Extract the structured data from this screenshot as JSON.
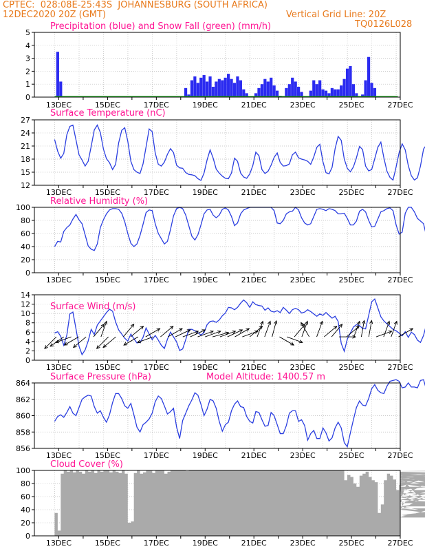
{
  "header": {
    "line1_left": "CPTEC:  028:08E-25:43S  JOHANNESBURG (SOUTH AFRICA)",
    "line2_left": "12DEC2020 20Z (GMT)",
    "line2_right": "Vertical Grid Line: 20Z",
    "code": "TQ0126L028"
  },
  "colors": {
    "line": "#2b3fe0",
    "bar": "#2b2bf0",
    "snow": "#22b022",
    "cloud": "#aaaaaa",
    "title": "#ff1493",
    "header": "#e87a1c"
  },
  "x_tick_labels": [
    "13DEC",
    "15DEC",
    "17DEC",
    "19DEC",
    "21DEC",
    "23DEC",
    "25DEC",
    "27DEC"
  ],
  "chart_data": [
    {
      "id": "precip",
      "type": "bar",
      "title": "Precipitation (blue) and Snow Fall (green) (mm/h)",
      "ylim": [
        0,
        5
      ],
      "yticks": [
        0,
        1,
        2,
        3,
        4,
        5
      ],
      "x_start_day": 12.83,
      "step_hours": 3,
      "snow_values": [
        0
      ],
      "values": [
        0,
        3.5,
        1.2,
        0,
        0,
        0,
        0,
        0,
        0,
        0,
        0,
        0,
        0,
        0,
        0,
        0,
        0,
        0,
        0,
        0,
        0,
        0,
        0,
        0,
        0,
        0,
        0,
        0,
        0,
        0,
        0,
        0,
        0,
        0,
        0,
        0,
        0,
        0,
        0,
        0,
        0,
        0,
        0,
        0.7,
        0.2,
        1.3,
        1.6,
        1.1,
        1.5,
        1.7,
        1.2,
        1.6,
        0.8,
        1.2,
        1.4,
        1.3,
        1.5,
        1.8,
        1.4,
        1.1,
        1.6,
        1.3,
        0.6,
        0.3,
        0,
        0,
        0.3,
        0.7,
        1.0,
        1.4,
        1.2,
        1.5,
        0.9,
        0.5,
        0.1,
        0,
        0.7,
        1.0,
        1.5,
        1.2,
        0.8,
        0.4,
        0,
        0,
        0.5,
        1.3,
        1.0,
        1.3,
        0.6,
        0.5,
        0.3,
        0.7,
        0.6,
        0.6,
        0.9,
        1.4,
        2.2,
        2.4,
        1.0,
        0.3,
        0,
        0.2,
        1.3,
        3.1,
        1.1,
        0.7,
        0,
        0,
        0,
        0,
        0,
        0,
        0,
        0,
        0,
        0,
        0,
        0,
        0,
        0,
        0,
        0,
        0,
        0,
        0,
        0,
        0,
        0,
        0,
        0,
        0,
        0,
        0,
        0,
        0,
        0,
        0,
        0,
        0,
        0,
        0,
        0,
        0,
        0,
        0,
        0,
        0,
        0,
        0,
        0.3,
        0,
        0,
        0,
        0,
        0.6,
        2.2,
        1.2,
        0
      ]
    },
    {
      "id": "temperature",
      "type": "line",
      "title": "Surface Temperature (nC)",
      "ylim": [
        12,
        27
      ],
      "yticks": [
        12,
        15,
        18,
        21,
        24,
        27
      ],
      "x_start_day": 12.83,
      "step_hours": 3,
      "values": [
        22.5,
        19.8,
        18.2,
        19.3,
        23.6,
        25.5,
        25.8,
        22.4,
        19.0,
        17.8,
        16.4,
        17.5,
        20.9,
        24.7,
        25.8,
        24.1,
        20.3,
        18.1,
        17.2,
        15.6,
        16.8,
        21.7,
        24.6,
        25.2,
        22.1,
        17.5,
        15.6,
        15.0,
        14.7,
        16.9,
        20.8,
        24.9,
        24.3,
        19.4,
        16.8,
        16.4,
        17.3,
        19.1,
        20.4,
        19.5,
        16.6,
        16.0,
        15.9,
        14.9,
        14.5,
        14.4,
        14.2,
        13.5,
        13.1,
        14.8,
        17.8,
        20.1,
        18.2,
        15.7,
        14.8,
        14.1,
        13.6,
        13.5,
        14.8,
        18.2,
        17.5,
        14.8,
        13.9,
        13.6,
        14.6,
        16.5,
        19.6,
        18.8,
        15.6,
        14.7,
        15.2,
        16.6,
        18.4,
        19.4,
        17.2,
        16.4,
        16.5,
        16.9,
        19.0,
        19.6,
        18.3,
        18.0,
        17.8,
        17.5,
        16.8,
        18.5,
        20.7,
        21.4,
        17.4,
        14.9,
        14.6,
        16.1,
        20.4,
        23.2,
        22.3,
        18.0,
        15.9,
        15.1,
        16.2,
        18.3,
        20.9,
        20.2,
        16.4,
        15.3,
        15.6,
        18.1,
        20.7,
        21.9,
        18.3,
        15.2,
        13.8,
        13.2,
        16.2,
        19.5,
        21.5,
        20.1,
        16.5,
        14.2,
        13.2,
        13.7,
        16.4,
        20.3,
        21.3,
        17.3,
        14.7,
        13.8,
        13.6,
        15.4,
        19.8,
        22.4,
        20.8,
        16.7,
        14.0,
        13.5,
        13.6,
        15.7,
        20.1,
        22.9,
        20.4,
        16.1,
        13.1,
        12.5,
        15.0,
        19.8,
        22.5,
        20.1,
        16.8,
        15.4,
        15.5,
        18.1,
        22.3,
        20.5,
        18.5,
        16.4
      ]
    },
    {
      "id": "humidity",
      "type": "line",
      "title": "Relative Humidity (%)",
      "ylim": [
        0,
        100
      ],
      "yticks": [
        0,
        20,
        40,
        60,
        80,
        100
      ],
      "x_start_day": 12.83,
      "step_hours": 3,
      "values": [
        40,
        48,
        47,
        63,
        69,
        73,
        82,
        89,
        81,
        75,
        58,
        41,
        36,
        34,
        44,
        69,
        81,
        90,
        96,
        98,
        98,
        97,
        91,
        78,
        60,
        45,
        40,
        44,
        57,
        74,
        92,
        96,
        95,
        75,
        60,
        52,
        44,
        48,
        66,
        87,
        98,
        100,
        98,
        88,
        72,
        56,
        50,
        58,
        73,
        90,
        96,
        97,
        88,
        84,
        88,
        97,
        99,
        96,
        86,
        72,
        76,
        90,
        96,
        98,
        100,
        100,
        100,
        100,
        100,
        100,
        100,
        100,
        95,
        76,
        75,
        80,
        90,
        93,
        94,
        100,
        96,
        84,
        76,
        73,
        75,
        86,
        97,
        98,
        97,
        95,
        98,
        97,
        95,
        90,
        90,
        91,
        83,
        73,
        73,
        79,
        94,
        97,
        93,
        80,
        70,
        71,
        82,
        93,
        95,
        98,
        99,
        95,
        73,
        59,
        62,
        91,
        100,
        100,
        93,
        83,
        79,
        75,
        55,
        43,
        43,
        52,
        68,
        91,
        99,
        100,
        96,
        82,
        67,
        48,
        42,
        49,
        77,
        100,
        100,
        96,
        73,
        45,
        37,
        42,
        55,
        77,
        97,
        100,
        97,
        85,
        60,
        46,
        43,
        48,
        90,
        100,
        100,
        100
      ]
    },
    {
      "id": "wind",
      "type": "line",
      "title": "Surface Wind (m/s)",
      "ylim": [
        0,
        14
      ],
      "yticks": [
        0,
        2,
        4,
        6,
        8,
        10,
        12,
        14
      ],
      "x_start_day": 12.83,
      "step_hours": 3,
      "values": [
        5.8,
        6.1,
        5.1,
        3.2,
        5.4,
        9.9,
        10.3,
        6.7,
        3.0,
        1.2,
        2.2,
        4.1,
        6.6,
        5.5,
        7.5,
        8.4,
        9.3,
        10.2,
        10.9,
        10.5,
        8.2,
        6.5,
        5.6,
        4.7,
        4.1,
        5.6,
        4.6,
        3.7,
        3.8,
        4.9,
        6.9,
        5.6,
        4.4,
        5.3,
        4.3,
        3.2,
        2.5,
        4.5,
        6.0,
        5.0,
        3.9,
        2.1,
        2.4,
        4.4,
        6.6,
        6.6,
        6.3,
        5.9,
        5.4,
        5.9,
        7.6,
        8.3,
        8.4,
        8.1,
        8.6,
        9.5,
        10.1,
        11.3,
        11.2,
        10.8,
        11.3,
        12.2,
        12.9,
        12.3,
        11.3,
        12.5,
        11.9,
        11.7,
        11.6,
        10.7,
        11.2,
        10.5,
        10.3,
        10.6,
        10.2,
        11.3,
        10.7,
        10.0,
        10.8,
        11.1,
        10.8,
        10.1,
        10.3,
        10.8,
        10.4,
        9.9,
        9.4,
        9.9,
        9.6,
        10.2,
        9.6,
        9.0,
        9.4,
        8.3,
        3.6,
        1.9,
        4.5,
        5.8,
        7.1,
        7.6,
        7.4,
        6.8,
        6.7,
        9.6,
        12.5,
        13.1,
        11.2,
        9.3,
        8.4,
        7.8,
        7.2,
        6.6,
        6.3,
        5.8,
        5.2,
        6.1,
        4.9,
        6.0,
        5.5,
        4.3,
        3.8,
        5.3,
        7.8,
        7.6,
        6.1,
        4.1,
        3.5,
        3.2,
        4.6,
        3.5,
        2.8,
        3.7,
        4.6,
        5.2,
        6.0,
        6.6,
        6.3,
        6.2,
        6.3,
        4.2,
        2.9,
        3.7,
        5.3,
        6.1,
        5.9,
        4.6,
        4.2,
        5.0,
        3.9,
        4.3,
        4.4,
        4.6,
        5.0,
        3.8,
        3.5,
        4.1,
        5.1,
        5.9
      ]
    },
    {
      "id": "pressure",
      "type": "line",
      "title": "Surface Pressure (hPa)",
      "subtitle": "Model Altitude: 1400.57 m",
      "ylim": [
        856,
        864
      ],
      "yticks": [
        856,
        858,
        860,
        862,
        864
      ],
      "x_start_day": 12.83,
      "step_hours": 3,
      "values": [
        859.3,
        859.9,
        860.1,
        859.8,
        860.4,
        861.1,
        860.3,
        860.0,
        861.0,
        862.0,
        862.3,
        862.5,
        862.4,
        861.1,
        860.3,
        860.6,
        859.8,
        859.2,
        860.1,
        861.6,
        862.7,
        862.7,
        862.1,
        861.2,
        860.9,
        861.5,
        860.1,
        858.6,
        858.0,
        858.9,
        859.2,
        859.6,
        860.3,
        861.7,
        862.4,
        862.1,
        861.2,
        860.2,
        860.5,
        860.9,
        858.6,
        857.2,
        859.4,
        860.3,
        861.2,
        861.9,
        862.8,
        862.5,
        861.4,
        860.0,
        860.8,
        862.0,
        861.8,
        860.9,
        859.3,
        858.1,
        858.9,
        859.2,
        860.6,
        861.4,
        861.8,
        861.1,
        861.0,
        859.9,
        859.3,
        859.1,
        860.5,
        860.4,
        859.5,
        858.7,
        858.8,
        860.4,
        860.0,
        858.9,
        857.8,
        857.8,
        858.8,
        860.3,
        860.6,
        860.6,
        859.3,
        859.5,
        858.8,
        857.0,
        857.8,
        858.2,
        857.2,
        857.2,
        858.5,
        857.9,
        856.9,
        857.3,
        858.5,
        859.2,
        858.5,
        856.7,
        856.2,
        857.9,
        859.5,
        861.0,
        861.8,
        861.3,
        861.2,
        862.1,
        863.3,
        863.8,
        863.1,
        862.8,
        862.7,
        863.6,
        864.2,
        864.3,
        864.4,
        864.2,
        863.4,
        863.5,
        864.0,
        863.5,
        863.5,
        863.4,
        864.3,
        864.4,
        863.1,
        862.3,
        860.6,
        859.8,
        860.1,
        861.7,
        862.0,
        861.2,
        860.1,
        859.4,
        859.2,
        859.8,
        860.1,
        859.7,
        859.3,
        859.6,
        860.0,
        861.1,
        861.6,
        861.2,
        859.7,
        858.6,
        858.8,
        859.5,
        861.1,
        861.2,
        860.2,
        859.5,
        860.0,
        859.8,
        858.3,
        858.0,
        858.4,
        859.4
      ]
    },
    {
      "id": "cloud",
      "type": "area",
      "title": "Cloud Cover (%)",
      "ylim": [
        0,
        100
      ],
      "yticks": [
        0,
        20,
        40,
        60,
        80,
        100
      ],
      "x_start_day": 12.83,
      "step_hours": 3,
      "values": [
        35,
        8,
        95,
        100,
        98,
        100,
        97,
        100,
        98,
        95,
        100,
        98,
        100,
        96,
        100,
        98,
        100,
        100,
        97,
        100,
        98,
        96,
        100,
        95,
        20,
        22,
        96,
        100,
        95,
        97,
        100,
        100,
        96,
        100,
        100,
        100,
        95,
        98,
        100,
        100,
        100,
        100,
        100,
        99,
        100,
        100,
        100,
        100,
        100,
        100,
        100,
        100,
        100,
        100,
        100,
        100,
        100,
        100,
        100,
        100,
        100,
        100,
        100,
        100,
        100,
        100,
        100,
        100,
        100,
        100,
        100,
        100,
        100,
        100,
        100,
        100,
        100,
        100,
        100,
        100,
        100,
        100,
        100,
        100,
        100,
        100,
        100,
        100,
        100,
        100,
        100,
        100,
        100,
        100,
        100,
        85,
        93,
        90,
        80,
        75,
        92,
        95,
        98,
        90,
        85,
        82,
        35,
        48,
        85,
        95,
        92,
        86,
        70,
        78,
        42,
        52,
        88,
        94,
        90,
        62,
        50,
        60,
        80,
        75,
        92,
        96,
        92,
        75,
        45,
        32,
        40,
        82,
        90,
        93,
        65,
        40,
        28,
        58,
        85,
        93,
        86,
        60,
        42,
        30,
        55,
        88,
        93,
        80,
        55,
        45,
        70,
        90,
        96,
        100,
        100,
        98
      ]
    }
  ],
  "wind_arrows_deg": [
    45,
    55,
    70,
    60,
    50,
    220,
    200,
    45,
    50,
    220,
    230,
    60,
    240,
    70,
    230,
    240,
    245,
    250,
    245,
    250,
    250,
    255,
    250,
    245,
    240,
    250,
    230,
    200,
    200,
    195,
    300,
    290,
    220,
    200,
    150,
    200,
    230,
    220,
    270,
    230,
    200,
    190,
    190,
    250,
    200,
    200,
    240
  ],
  "panel_titles": {
    "precip": "Precipitation (blue) and Snow Fall (green) (mm/h)",
    "temperature": "Surface Temperature (nC)",
    "humidity": "Relative Humidity (%)",
    "wind": "Surface Wind (m/s)",
    "pressure": "Surface Pressure (hPa)",
    "pressure_sub": "Model Altitude: 1400.57 m",
    "cloud": "Cloud Cover (%)"
  }
}
